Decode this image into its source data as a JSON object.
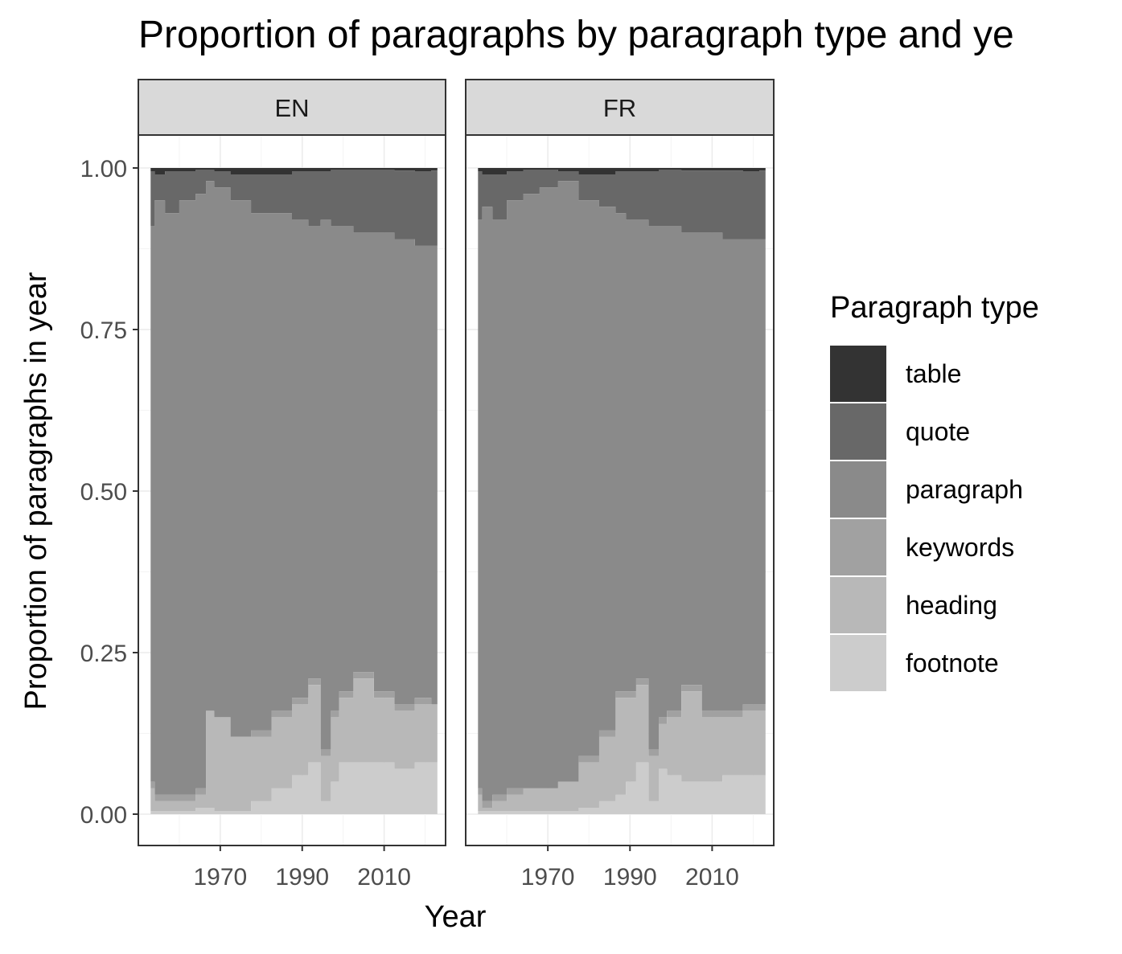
{
  "chart_data": {
    "type": "area",
    "title": "Proportion of paragraphs by paragraph type and ye",
    "xlabel": "Year",
    "ylabel": "Proportion of paragraphs in year",
    "ylim": [
      0,
      1
    ],
    "xlim": [
      1950,
      2025
    ],
    "x_ticks": [
      1970,
      1990,
      2010
    ],
    "y_ticks": [
      0.0,
      0.25,
      0.5,
      0.75,
      1.0
    ],
    "y_tick_labels": [
      "0.00",
      "0.25",
      "0.50",
      "0.75",
      "1.00"
    ],
    "grid": true,
    "legend": {
      "title": "Paragraph type",
      "position": "right",
      "items": [
        {
          "label": "table",
          "color": "#333333"
        },
        {
          "label": "quote",
          "color": "#686868"
        },
        {
          "label": "paragraph",
          "color": "#8a8a8a"
        },
        {
          "label": "keywords",
          "color": "#a1a1a1"
        },
        {
          "label": "heading",
          "color": "#b8b8b8"
        },
        {
          "label": "footnote",
          "color": "#cccccc"
        }
      ]
    },
    "stack_order": [
      "footnote",
      "heading",
      "keywords",
      "paragraph",
      "quote",
      "table"
    ],
    "cumulative_boundaries_note": "series values are cumulative upper bounds of each stacked layer",
    "panels": [
      {
        "name": "EN",
        "x": [
          1953,
          1955,
          1958,
          1962,
          1966,
          1967,
          1970,
          1975,
          1980,
          1985,
          1990,
          1993,
          1996,
          1998,
          2000,
          2005,
          2010,
          2015,
          2020,
          2023
        ],
        "series": [
          {
            "name": "footnote",
            "values": [
              0.005,
              0.005,
              0.005,
              0.005,
              0.01,
              0.01,
              0.005,
              0.005,
              0.02,
              0.04,
              0.06,
              0.08,
              0.02,
              0.05,
              0.08,
              0.08,
              0.08,
              0.07,
              0.08,
              0.08
            ]
          },
          {
            "name": "heading",
            "values": [
              0.04,
              0.02,
              0.02,
              0.02,
              0.03,
              0.16,
              0.15,
              0.12,
              0.12,
              0.15,
              0.17,
              0.2,
              0.09,
              0.15,
              0.18,
              0.21,
              0.18,
              0.16,
              0.17,
              0.17
            ]
          },
          {
            "name": "keywords",
            "values": [
              0.05,
              0.03,
              0.03,
              0.03,
              0.04,
              0.16,
              0.15,
              0.12,
              0.13,
              0.16,
              0.18,
              0.21,
              0.1,
              0.16,
              0.19,
              0.22,
              0.19,
              0.17,
              0.18,
              0.17
            ]
          },
          {
            "name": "paragraph",
            "values": [
              0.91,
              0.95,
              0.93,
              0.95,
              0.96,
              0.98,
              0.97,
              0.95,
              0.93,
              0.93,
              0.92,
              0.91,
              0.92,
              0.91,
              0.91,
              0.9,
              0.9,
              0.89,
              0.88,
              0.88
            ]
          },
          {
            "name": "quote",
            "values": [
              0.995,
              0.99,
              0.995,
              0.995,
              0.997,
              0.997,
              0.995,
              0.99,
              0.99,
              0.99,
              0.995,
              0.995,
              0.995,
              0.997,
              0.997,
              0.997,
              0.997,
              0.996,
              0.995,
              0.996
            ]
          },
          {
            "name": "table",
            "values": [
              1,
              1,
              1,
              1,
              1,
              1,
              1,
              1,
              1,
              1,
              1,
              1,
              1,
              1,
              1,
              1,
              1,
              1,
              1,
              1
            ]
          }
        ]
      },
      {
        "name": "FR",
        "x": [
          1953,
          1955,
          1958,
          1962,
          1966,
          1970,
          1975,
          1980,
          1985,
          1988,
          1990,
          1993,
          1996,
          1998,
          2000,
          2005,
          2010,
          2015,
          2020,
          2023
        ],
        "series": [
          {
            "name": "footnote",
            "values": [
              0.005,
              0.005,
              0.005,
              0.005,
              0.005,
              0.005,
              0.005,
              0.01,
              0.02,
              0.03,
              0.05,
              0.08,
              0.02,
              0.07,
              0.06,
              0.05,
              0.05,
              0.06,
              0.06,
              0.06
            ]
          },
          {
            "name": "heading",
            "values": [
              0.03,
              0.01,
              0.02,
              0.03,
              0.04,
              0.04,
              0.05,
              0.08,
              0.12,
              0.18,
              0.18,
              0.2,
              0.09,
              0.14,
              0.15,
              0.19,
              0.15,
              0.15,
              0.16,
              0.16
            ]
          },
          {
            "name": "keywords",
            "values": [
              0.04,
              0.02,
              0.03,
              0.04,
              0.04,
              0.04,
              0.05,
              0.09,
              0.13,
              0.19,
              0.19,
              0.21,
              0.1,
              0.15,
              0.16,
              0.2,
              0.16,
              0.16,
              0.17,
              0.17
            ]
          },
          {
            "name": "paragraph",
            "values": [
              0.92,
              0.94,
              0.92,
              0.95,
              0.96,
              0.97,
              0.98,
              0.95,
              0.94,
              0.93,
              0.92,
              0.92,
              0.91,
              0.91,
              0.91,
              0.9,
              0.9,
              0.89,
              0.89,
              0.89
            ]
          },
          {
            "name": "quote",
            "values": [
              0.995,
              0.99,
              0.99,
              0.995,
              0.997,
              0.997,
              0.995,
              0.99,
              0.99,
              0.995,
              0.995,
              0.995,
              0.995,
              0.997,
              0.997,
              0.996,
              0.996,
              0.996,
              0.995,
              0.996
            ]
          },
          {
            "name": "table",
            "values": [
              1,
              1,
              1,
              1,
              1,
              1,
              1,
              1,
              1,
              1,
              1,
              1,
              1,
              1,
              1,
              1,
              1,
              1,
              1,
              1
            ]
          }
        ]
      }
    ]
  }
}
